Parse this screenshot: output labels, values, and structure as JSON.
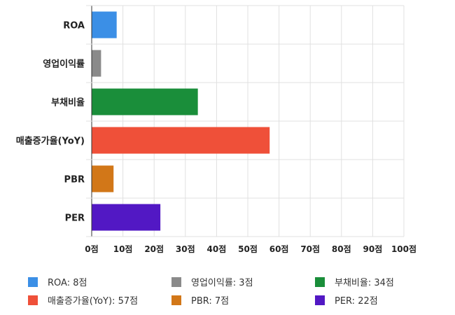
{
  "chart_data": {
    "type": "bar",
    "orientation": "horizontal",
    "categories": [
      "ROA",
      "영업이익률",
      "부채비율",
      "매출증가율(YoY)",
      "PBR",
      "PER"
    ],
    "values": [
      8,
      3,
      34,
      57,
      7,
      22
    ],
    "colors": [
      "#3b8fe6",
      "#8a8a8a",
      "#1a8e3a",
      "#ef5039",
      "#d27718",
      "#5218c4"
    ],
    "xlim": [
      0,
      100
    ],
    "x_ticks": [
      "0점",
      "10점",
      "20점",
      "30점",
      "40점",
      "50점",
      "60점",
      "70점",
      "80점",
      "90점",
      "100점"
    ],
    "grid": true,
    "legend_position": "bottom",
    "legend": [
      "ROA: 8점",
      "영업이익률: 3점",
      "부채비율: 34점",
      "매출증가율(YoY): 57점",
      "PBR: 7점",
      "PER: 22점"
    ]
  }
}
